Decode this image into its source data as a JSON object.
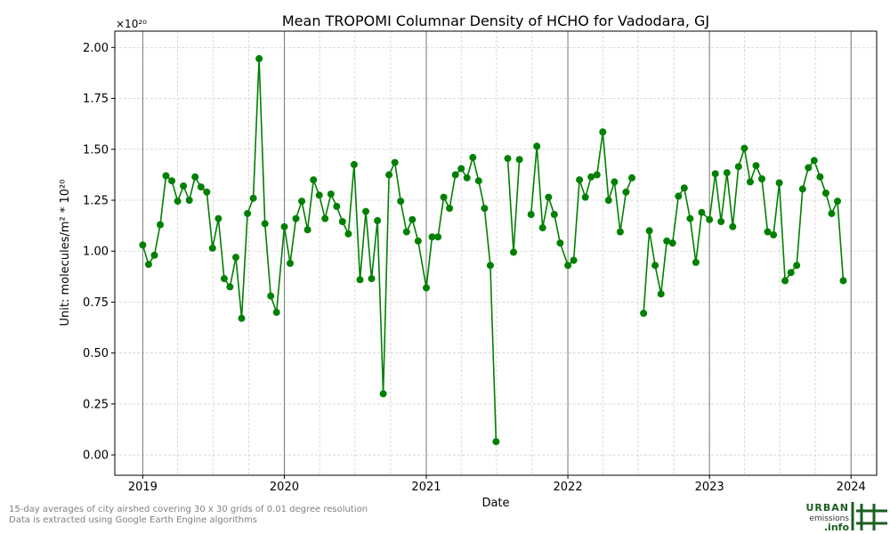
{
  "chart_data": {
    "type": "line",
    "title": "Mean TROPOMI Columnar Density of HCHO for Vadodara, GJ",
    "xlabel": "Date",
    "ylabel": "Unit: molecules/m² * 10²⁰",
    "y_multiplier": "×10²⁰",
    "ylim": [
      -0.1,
      2.08
    ],
    "xlim": [
      "2018-10-21",
      "2024-03-07"
    ],
    "x_ticks": [
      "2019",
      "2020",
      "2021",
      "2022",
      "2023",
      "2024"
    ],
    "y_ticks": [
      "0.00",
      "0.25",
      "0.50",
      "0.75",
      "1.00",
      "1.25",
      "1.50",
      "1.75",
      "2.00"
    ],
    "grid": true,
    "line_color": "#008000",
    "series": [
      {
        "points": [
          [
            "2019-01-01",
            1.03
          ],
          [
            "2019-01-16",
            0.935
          ],
          [
            "2019-01-31",
            0.98
          ],
          [
            "2019-02-15",
            1.13
          ],
          [
            "2019-03-02",
            1.37
          ],
          [
            "2019-03-17",
            1.345
          ],
          [
            "2019-04-01",
            1.245
          ],
          [
            "2019-04-16",
            1.32
          ],
          [
            "2019-05-01",
            1.25
          ],
          [
            "2019-05-16",
            1.365
          ],
          [
            "2019-05-31",
            1.315
          ],
          [
            "2019-06-15",
            1.29
          ],
          [
            "2019-06-30",
            1.015
          ],
          [
            "2019-07-15",
            1.16
          ],
          [
            "2019-07-30",
            0.865
          ],
          [
            "2019-08-14",
            0.825
          ],
          [
            "2019-08-29",
            0.97
          ],
          [
            "2019-09-13",
            0.67
          ],
          [
            "2019-09-28",
            1.185
          ],
          [
            "2019-10-13",
            1.26
          ],
          [
            "2019-10-28",
            1.945
          ],
          [
            "2019-11-12",
            1.135
          ],
          [
            "2019-11-27",
            0.78
          ],
          [
            "2019-12-12",
            0.7
          ],
          [
            "2020-01-01",
            1.12
          ],
          [
            "2020-01-16",
            0.94
          ],
          [
            "2020-01-31",
            1.16
          ],
          [
            "2020-02-15",
            1.245
          ],
          [
            "2020-03-01",
            1.105
          ],
          [
            "2020-03-16",
            1.35
          ],
          [
            "2020-03-31",
            1.275
          ],
          [
            "2020-04-15",
            1.16
          ],
          [
            "2020-04-30",
            1.28
          ],
          [
            "2020-05-15",
            1.22
          ],
          [
            "2020-05-30",
            1.145
          ],
          [
            "2020-06-14",
            1.085
          ],
          [
            "2020-06-29",
            1.425
          ],
          [
            "2020-07-14",
            0.86
          ],
          [
            "2020-07-29",
            1.195
          ],
          [
            "2020-08-13",
            0.865
          ],
          [
            "2020-08-28",
            1.15
          ],
          [
            "2020-09-12",
            0.3
          ],
          [
            "2020-09-27",
            1.375
          ],
          [
            "2020-10-12",
            1.435
          ],
          [
            "2020-10-27",
            1.245
          ],
          [
            "2020-11-11",
            1.095
          ],
          [
            "2020-11-26",
            1.155
          ],
          [
            "2020-12-11",
            1.05
          ],
          [
            "2021-01-01",
            0.82
          ],
          [
            "2021-01-16",
            1.07
          ],
          [
            "2021-01-31",
            1.07
          ],
          [
            "2021-02-15",
            1.265
          ],
          [
            "2021-03-02",
            1.21
          ],
          [
            "2021-03-17",
            1.375
          ],
          [
            "2021-04-01",
            1.405
          ],
          [
            "2021-04-16",
            1.36
          ],
          [
            "2021-05-01",
            1.46
          ],
          [
            "2021-05-16",
            1.345
          ],
          [
            "2021-05-31",
            1.21
          ],
          [
            "2021-06-15",
            0.93
          ],
          [
            "2021-06-30",
            0.065
          ],
          [
            "2021-07-15",
            null
          ],
          [
            "2021-07-30",
            1.455
          ],
          [
            "2021-08-14",
            0.995
          ],
          [
            "2021-08-29",
            1.45
          ],
          [
            "2021-09-13",
            null
          ],
          [
            "2021-09-28",
            1.18
          ],
          [
            "2021-10-13",
            1.515
          ],
          [
            "2021-10-28",
            1.115
          ],
          [
            "2021-11-12",
            1.265
          ],
          [
            "2021-11-27",
            1.18
          ],
          [
            "2021-12-12",
            1.04
          ],
          [
            "2022-01-01",
            0.93
          ],
          [
            "2022-01-16",
            0.955
          ],
          [
            "2022-01-31",
            1.35
          ],
          [
            "2022-02-15",
            1.265
          ],
          [
            "2022-03-02",
            1.365
          ],
          [
            "2022-03-17",
            1.375
          ],
          [
            "2022-04-01",
            1.585
          ],
          [
            "2022-04-16",
            1.25
          ],
          [
            "2022-05-01",
            1.34
          ],
          [
            "2022-05-16",
            1.095
          ],
          [
            "2022-05-31",
            1.29
          ],
          [
            "2022-06-15",
            1.36
          ],
          [
            "2022-06-30",
            null
          ],
          [
            "2022-07-15",
            0.695
          ],
          [
            "2022-07-30",
            1.1
          ],
          [
            "2022-08-14",
            0.93
          ],
          [
            "2022-08-29",
            0.79
          ],
          [
            "2022-09-13",
            1.05
          ],
          [
            "2022-09-28",
            1.04
          ],
          [
            "2022-10-13",
            1.27
          ],
          [
            "2022-10-28",
            1.31
          ],
          [
            "2022-11-12",
            1.16
          ],
          [
            "2022-11-27",
            0.945
          ],
          [
            "2022-12-12",
            1.19
          ],
          [
            "2023-01-01",
            1.155
          ],
          [
            "2023-01-16",
            1.38
          ],
          [
            "2023-01-31",
            1.145
          ],
          [
            "2023-02-15",
            1.385
          ],
          [
            "2023-03-02",
            1.12
          ],
          [
            "2023-03-17",
            1.415
          ],
          [
            "2023-04-01",
            1.505
          ],
          [
            "2023-04-16",
            1.34
          ],
          [
            "2023-05-01",
            1.42
          ],
          [
            "2023-05-16",
            1.355
          ],
          [
            "2023-05-31",
            1.095
          ],
          [
            "2023-06-15",
            1.08
          ],
          [
            "2023-06-30",
            1.335
          ],
          [
            "2023-07-15",
            0.855
          ],
          [
            "2023-07-30",
            0.895
          ],
          [
            "2023-08-14",
            0.93
          ],
          [
            "2023-08-29",
            1.305
          ],
          [
            "2023-09-13",
            1.41
          ],
          [
            "2023-09-28",
            1.445
          ],
          [
            "2023-10-13",
            1.365
          ],
          [
            "2023-10-28",
            1.285
          ],
          [
            "2023-11-12",
            1.185
          ],
          [
            "2023-11-27",
            1.245
          ],
          [
            "2023-12-12",
            0.855
          ]
        ]
      }
    ]
  },
  "footnotes": [
    "15-day averages of city airshed covering 30 x 30 grids of 0.01 degree resolution",
    "Data is extracted using Google Earth Engine algorithms"
  ],
  "logo": {
    "line1": "URBAN",
    "line2": "emissions",
    "line3": ".info",
    "color": "#1b5e20"
  }
}
